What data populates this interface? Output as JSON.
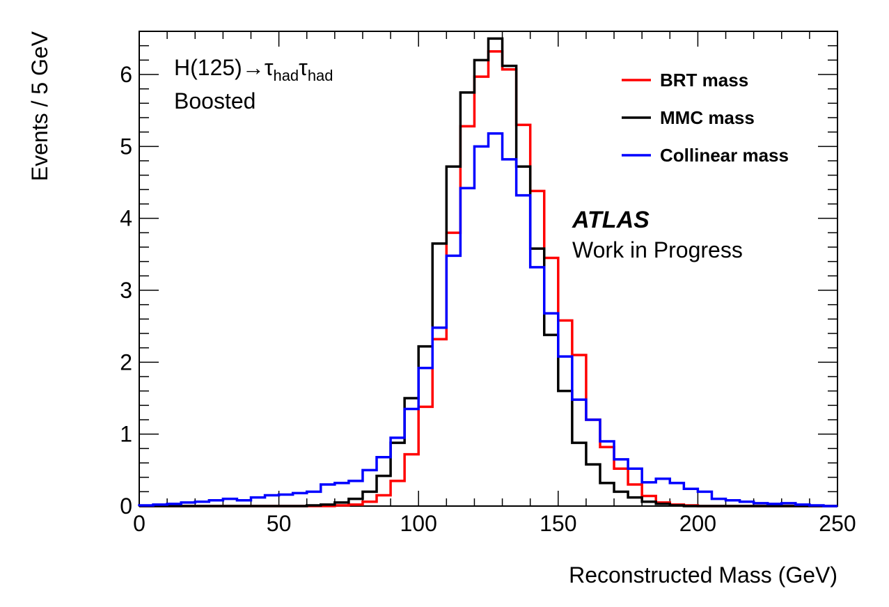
{
  "chart_data": {
    "type": "line",
    "style": "step-histogram",
    "xlabel": "Reconstructed Mass (GeV)",
    "ylabel": "Events / 5 GeV",
    "xlim": [
      0,
      250
    ],
    "ylim": [
      0,
      6.6
    ],
    "x_ticks": [
      "0",
      "50",
      "100",
      "150",
      "200",
      "250"
    ],
    "y_ticks": [
      "0",
      "1",
      "2",
      "3",
      "4",
      "5",
      "6"
    ],
    "grid": false,
    "bin_width": 5,
    "bin_edges": [
      0,
      5,
      10,
      15,
      20,
      25,
      30,
      35,
      40,
      45,
      50,
      55,
      60,
      65,
      70,
      75,
      80,
      85,
      90,
      95,
      100,
      105,
      110,
      115,
      120,
      125,
      130,
      135,
      140,
      145,
      150,
      155,
      160,
      165,
      170,
      175,
      180,
      185,
      190,
      195,
      200,
      205,
      210,
      215,
      220,
      225,
      230,
      235,
      240,
      245,
      250
    ],
    "legend_position": "top-right",
    "annotations": {
      "process": "H(125)→τ",
      "tau_subscript": "had",
      "process_tau2": "τ",
      "category": "Boosted",
      "atlas": "ATLAS",
      "status": "Work in Progress"
    },
    "series": [
      {
        "name": "BRT mass",
        "color": "#ff0000",
        "values": [
          0,
          0,
          0,
          0,
          0,
          0,
          0,
          0,
          0,
          0,
          0,
          0,
          0,
          0,
          0.01,
          0.02,
          0.06,
          0.15,
          0.35,
          0.72,
          1.38,
          2.32,
          3.8,
          5.28,
          5.97,
          6.32,
          6.07,
          5.3,
          4.38,
          3.45,
          2.58,
          2.1,
          1.2,
          0.82,
          0.52,
          0.3,
          0.14,
          0.05,
          0.02,
          0.01,
          0,
          0,
          0,
          0,
          0,
          0,
          0,
          0,
          0,
          0
        ]
      },
      {
        "name": "MMC mass",
        "color": "#000000",
        "values": [
          0,
          0,
          0,
          0,
          0,
          0,
          0,
          0,
          0,
          0,
          0,
          0,
          0.01,
          0.02,
          0.05,
          0.1,
          0.2,
          0.42,
          0.88,
          1.5,
          2.22,
          3.65,
          4.72,
          5.75,
          6.2,
          6.5,
          6.12,
          4.72,
          3.58,
          2.38,
          1.6,
          0.88,
          0.58,
          0.32,
          0.2,
          0.12,
          0.06,
          0.03,
          0.01,
          0,
          0,
          0,
          0,
          0,
          0,
          0,
          0,
          0,
          0,
          0
        ]
      },
      {
        "name": "Collinear mass",
        "color": "#0000ff",
        "values": [
          0.01,
          0.02,
          0.03,
          0.05,
          0.06,
          0.08,
          0.1,
          0.08,
          0.12,
          0.15,
          0.16,
          0.18,
          0.2,
          0.3,
          0.32,
          0.35,
          0.5,
          0.68,
          0.95,
          1.35,
          1.92,
          2.48,
          3.48,
          4.42,
          5.0,
          5.18,
          4.82,
          4.32,
          3.32,
          2.68,
          2.08,
          1.48,
          1.2,
          0.9,
          0.65,
          0.52,
          0.33,
          0.38,
          0.32,
          0.24,
          0.2,
          0.1,
          0.08,
          0.06,
          0.04,
          0.03,
          0.04,
          0.02,
          0.01,
          0
        ]
      }
    ]
  }
}
